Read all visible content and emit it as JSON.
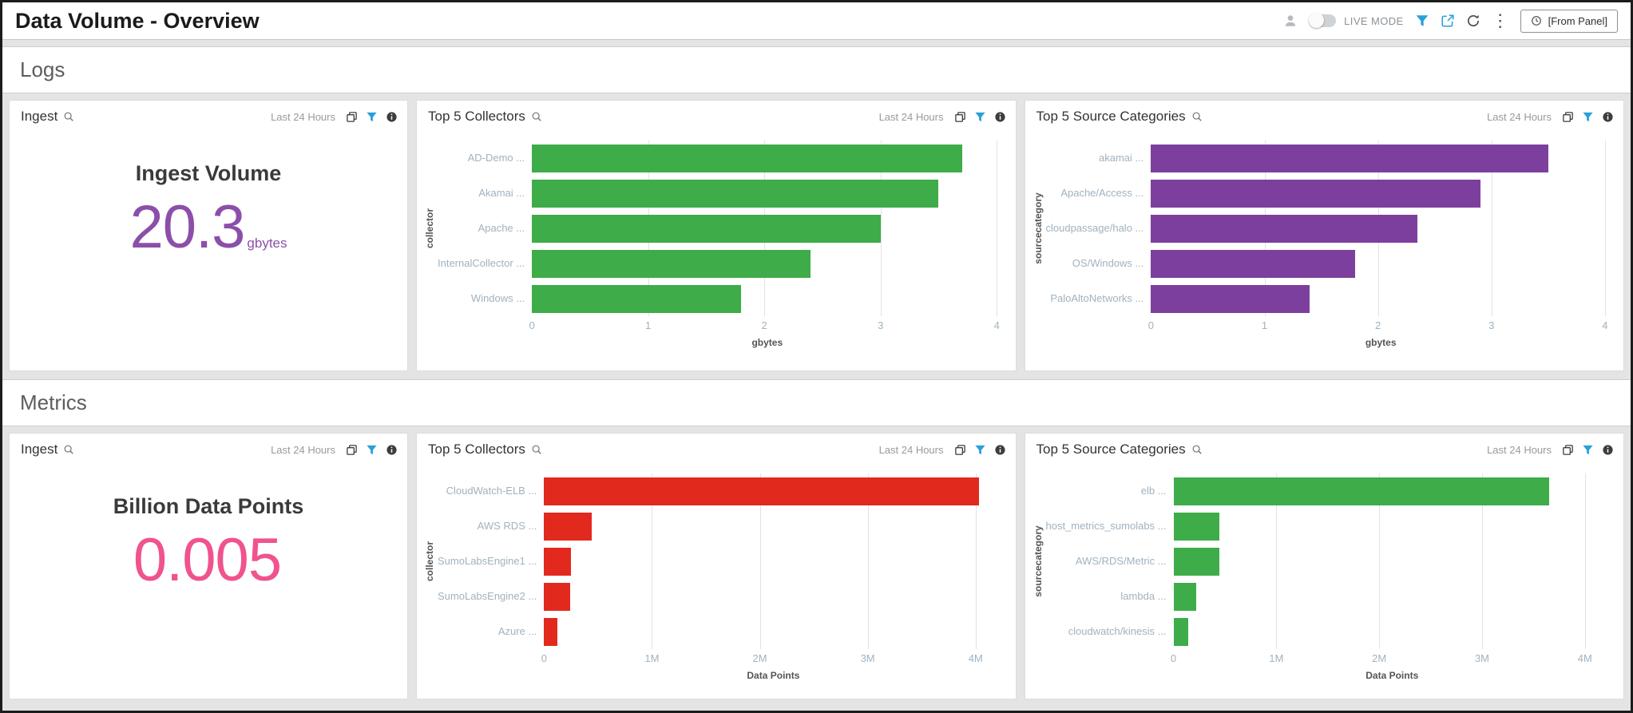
{
  "header": {
    "title": "Data Volume - Overview",
    "live_mode_label": "LIVE MODE",
    "time_selector": "[From Panel]"
  },
  "sections": {
    "logs": {
      "label": "Logs"
    },
    "metrics": {
      "label": "Metrics"
    }
  },
  "colors": {
    "logs_bar_green": "#3EAC49",
    "logs_bar_purple": "#7D3F9D",
    "metrics_bar_red": "#E2291D",
    "metrics_bar_green": "#3EAC49",
    "logs_stat_purple": "#8C4FA9",
    "metrics_stat_pink": "#F0538D"
  },
  "logs": {
    "ingest": {
      "title": "Ingest",
      "time_label": "Last 24 Hours",
      "stat_title": "Ingest Volume",
      "value": "20.3",
      "unit": "gbytes"
    },
    "collectors": {
      "title": "Top 5 Collectors",
      "time_label": "Last 24 Hours",
      "chart": {
        "type": "bar",
        "orientation": "horizontal",
        "categories": [
          "AD-Demo ...",
          "Akamai ...",
          "Apache ...",
          "InternalCollector ...",
          "Windows ..."
        ],
        "values": [
          3.7,
          3.5,
          3.0,
          2.4,
          1.8
        ],
        "color": "#3EAC49",
        "xlim": [
          0,
          4.05
        ],
        "ticks": [
          0,
          1,
          2,
          3,
          4
        ],
        "tick_labels": [
          "0",
          "1",
          "2",
          "3",
          "4"
        ],
        "xlabel": "gbytes",
        "ylabel": "collector"
      }
    },
    "source_categories": {
      "title": "Top 5 Source Categories",
      "time_label": "Last 24 Hours",
      "chart": {
        "type": "bar",
        "orientation": "horizontal",
        "categories": [
          "akamai ...",
          "Apache/Access ...",
          "cloudpassage/halo ...",
          "OS/Windows ...",
          "PaloAltoNetworks ..."
        ],
        "values": [
          3.5,
          2.9,
          2.35,
          1.8,
          1.4
        ],
        "color": "#7D3F9D",
        "xlim": [
          0,
          4.05
        ],
        "ticks": [
          0,
          1,
          2,
          3,
          4
        ],
        "tick_labels": [
          "0",
          "1",
          "2",
          "3",
          "4"
        ],
        "xlabel": "gbytes",
        "ylabel": "sourcecategory"
      }
    }
  },
  "metrics": {
    "ingest": {
      "title": "Ingest",
      "time_label": "Last 24 Hours",
      "stat_title": "Billion Data Points",
      "value": "0.005",
      "unit": ""
    },
    "collectors": {
      "title": "Top 5 Collectors",
      "time_label": "Last 24 Hours",
      "chart": {
        "type": "bar",
        "orientation": "horizontal",
        "categories": [
          "CloudWatch-ELB ...",
          "AWS RDS ...",
          "SumoLabsEngine1 ...",
          "SumoLabsEngine2 ...",
          "Azure ..."
        ],
        "values": [
          4.03,
          0.44,
          0.25,
          0.24,
          0.12
        ],
        "value_scale": "millions",
        "color": "#E2291D",
        "xlim": [
          0,
          4.25
        ],
        "ticks": [
          0,
          1,
          2,
          3,
          4
        ],
        "tick_labels": [
          "0",
          "1M",
          "2M",
          "3M",
          "4M"
        ],
        "xlabel": "Data Points",
        "ylabel": "collector"
      }
    },
    "source_categories": {
      "title": "Top 5 Source Categories",
      "time_label": "Last 24 Hours",
      "chart": {
        "type": "bar",
        "orientation": "horizontal",
        "categories": [
          "elb ...",
          "host_metrics_sumolabs ...",
          "AWS/RDS/Metric ...",
          "lambda ...",
          "cloudwatch/kinesis ..."
        ],
        "values": [
          3.65,
          0.45,
          0.45,
          0.22,
          0.14
        ],
        "value_scale": "millions",
        "color": "#3EAC49",
        "xlim": [
          0,
          4.25
        ],
        "ticks": [
          0,
          1,
          2,
          3,
          4
        ],
        "tick_labels": [
          "0",
          "1M",
          "2M",
          "3M",
          "4M"
        ],
        "xlabel": "Data Points",
        "ylabel": "sourcecategory"
      }
    }
  }
}
